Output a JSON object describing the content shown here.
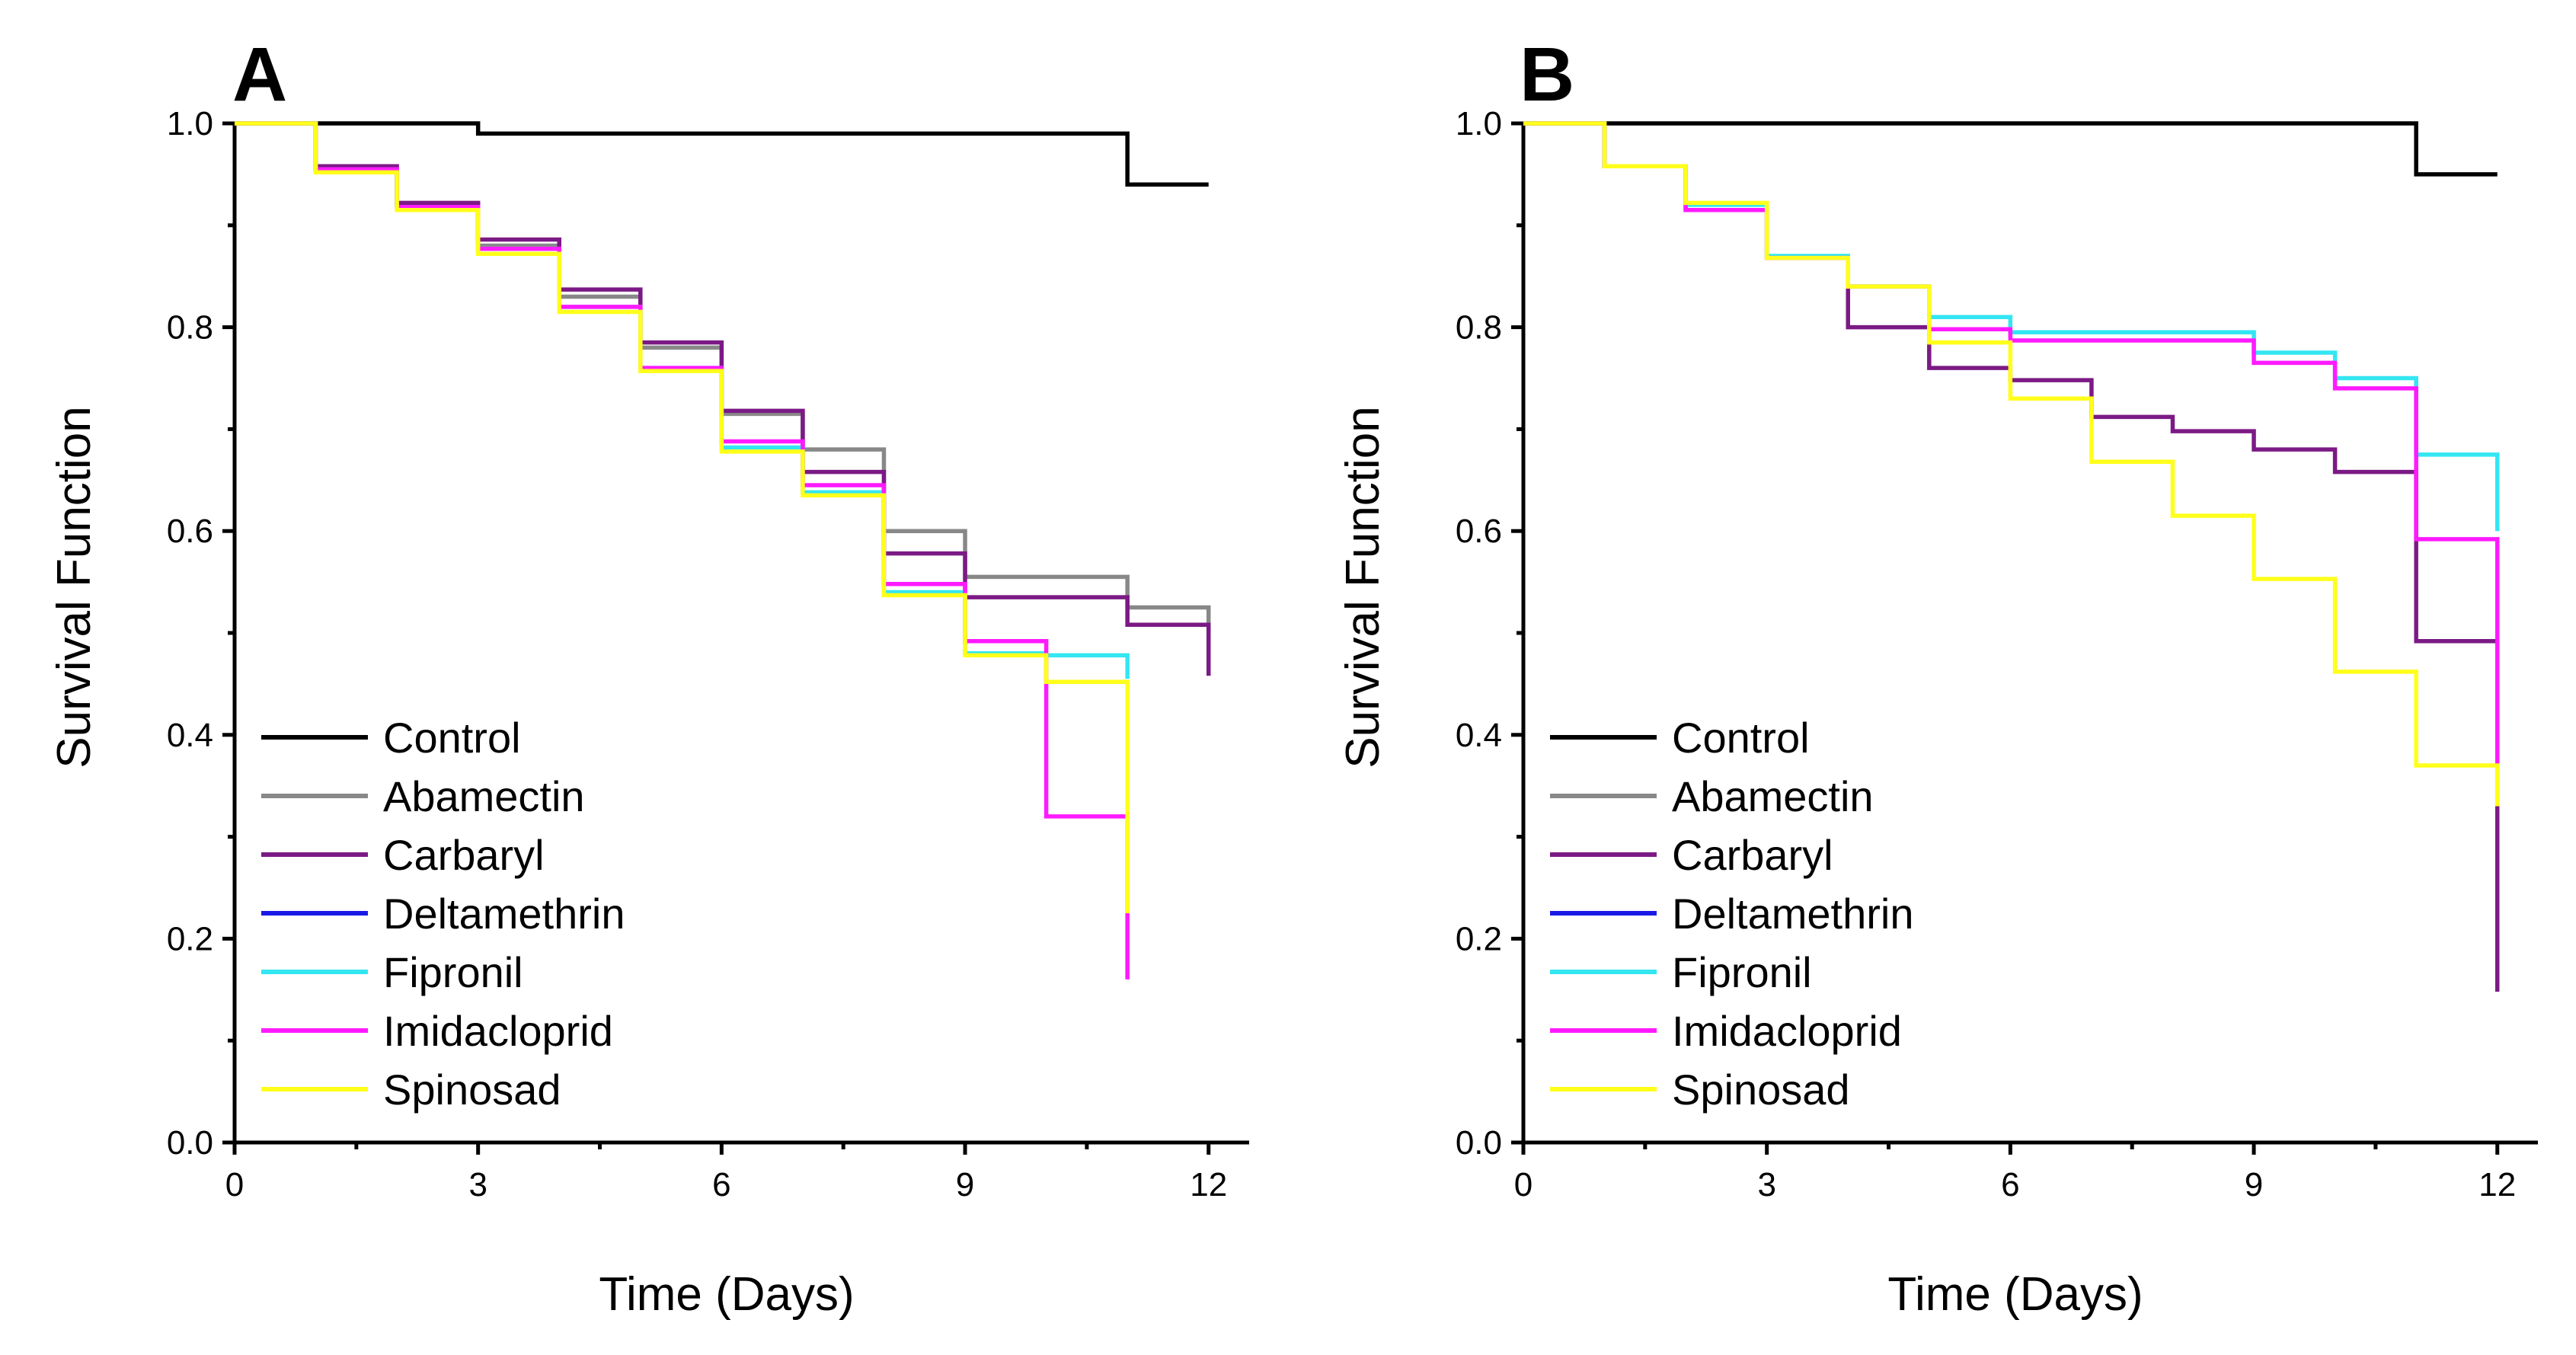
{
  "chart_data": [
    {
      "panel": "A",
      "type": "line",
      "step": true,
      "xlabel": "Time (Days)",
      "ylabel": "Survival Function",
      "xlim": [
        0,
        12.5
      ],
      "ylim": [
        0,
        1
      ],
      "xticks": [
        "0",
        "3",
        "6",
        "9",
        "12"
      ],
      "yticks": [
        "0.0",
        "0.2",
        "0.4",
        "0.6",
        "0.8",
        "1.0"
      ],
      "legend_position": "bottom-left",
      "series": [
        {
          "name": "Control",
          "color": "#000000",
          "x": [
            0,
            3,
            11,
            12
          ],
          "y": [
            1.0,
            0.99,
            0.94,
            0.94
          ]
        },
        {
          "name": "Abamectin",
          "color": "#888888",
          "x": [
            0,
            1,
            2,
            3,
            4,
            5,
            6,
            7,
            8,
            9,
            11,
            12
          ],
          "y": [
            1.0,
            0.955,
            0.92,
            0.88,
            0.83,
            0.78,
            0.715,
            0.68,
            0.6,
            0.555,
            0.525,
            0.5
          ]
        },
        {
          "name": "Carbaryl",
          "color": "#7b1a85",
          "x": [
            0,
            1,
            2,
            3,
            4,
            5,
            6,
            7,
            8,
            9,
            11,
            12
          ],
          "y": [
            1.0,
            0.958,
            0.922,
            0.886,
            0.837,
            0.785,
            0.718,
            0.658,
            0.578,
            0.535,
            0.508,
            0.458
          ]
        },
        {
          "name": "Deltamethrin",
          "color": "#1a1ae6",
          "x": [],
          "y": []
        },
        {
          "name": "Fipronil",
          "color": "#33e6f2",
          "x": [
            0,
            1,
            2,
            3,
            4,
            5,
            6,
            7,
            8,
            9,
            10,
            11
          ],
          "y": [
            1.0,
            0.955,
            0.918,
            0.877,
            0.82,
            0.76,
            0.682,
            0.638,
            0.54,
            0.48,
            0.478,
            0.455
          ]
        },
        {
          "name": "Imidacloprid",
          "color": "#ff1aff",
          "x": [
            0,
            1,
            2,
            3,
            4,
            5,
            6,
            7,
            8,
            9,
            10,
            11
          ],
          "y": [
            1.0,
            0.955,
            0.918,
            0.877,
            0.82,
            0.76,
            0.688,
            0.645,
            0.548,
            0.492,
            0.32,
            0.16
          ]
        },
        {
          "name": "Spinosad",
          "color": "#ffff1a",
          "x": [
            0,
            1,
            2,
            3,
            4,
            5,
            6,
            7,
            8,
            9,
            10,
            11
          ],
          "y": [
            1.0,
            0.952,
            0.915,
            0.872,
            0.815,
            0.757,
            0.678,
            0.635,
            0.537,
            0.478,
            0.452,
            0.225
          ]
        }
      ]
    },
    {
      "panel": "B",
      "type": "line",
      "step": true,
      "xlabel": "Time (Days)",
      "ylabel": "Survival Function",
      "xlim": [
        0,
        12.5
      ],
      "ylim": [
        0,
        1
      ],
      "xticks": [
        "0",
        "3",
        "6",
        "9",
        "12"
      ],
      "yticks": [
        "0.0",
        "0.2",
        "0.4",
        "0.6",
        "0.8",
        "1.0"
      ],
      "legend_position": "bottom-left",
      "series": [
        {
          "name": "Control",
          "color": "#000000",
          "x": [
            0,
            11,
            12
          ],
          "y": [
            1.0,
            0.95,
            0.95
          ]
        },
        {
          "name": "Abamectin",
          "color": "#888888",
          "x": [],
          "y": []
        },
        {
          "name": "Carbaryl",
          "color": "#7b1a85",
          "x": [
            0,
            1,
            2,
            3,
            4,
            5,
            6,
            7,
            8,
            9,
            10,
            11,
            12
          ],
          "y": [
            1.0,
            0.958,
            0.915,
            0.868,
            0.8,
            0.76,
            0.748,
            0.712,
            0.698,
            0.68,
            0.658,
            0.492,
            0.148
          ]
        },
        {
          "name": "Deltamethrin",
          "color": "#1a1ae6",
          "x": [],
          "y": []
        },
        {
          "name": "Fipronil",
          "color": "#33e6f2",
          "x": [
            0,
            1,
            2,
            3,
            4,
            5,
            6,
            9,
            10,
            11,
            12
          ],
          "y": [
            1.0,
            0.958,
            0.92,
            0.87,
            0.84,
            0.81,
            0.795,
            0.775,
            0.75,
            0.675,
            0.6
          ]
        },
        {
          "name": "Imidacloprid",
          "color": "#ff1aff",
          "x": [
            0,
            1,
            2,
            3,
            4,
            5,
            6,
            9,
            10,
            11,
            12
          ],
          "y": [
            1.0,
            0.958,
            0.915,
            0.868,
            0.84,
            0.798,
            0.787,
            0.765,
            0.74,
            0.592,
            0.37
          ]
        },
        {
          "name": "Spinosad",
          "color": "#ffff1a",
          "x": [
            0,
            1,
            2,
            3,
            4,
            5,
            6,
            7,
            8,
            9,
            10,
            11,
            12
          ],
          "y": [
            1.0,
            0.958,
            0.922,
            0.868,
            0.84,
            0.785,
            0.73,
            0.668,
            0.615,
            0.553,
            0.462,
            0.37,
            0.33
          ]
        }
      ]
    }
  ]
}
